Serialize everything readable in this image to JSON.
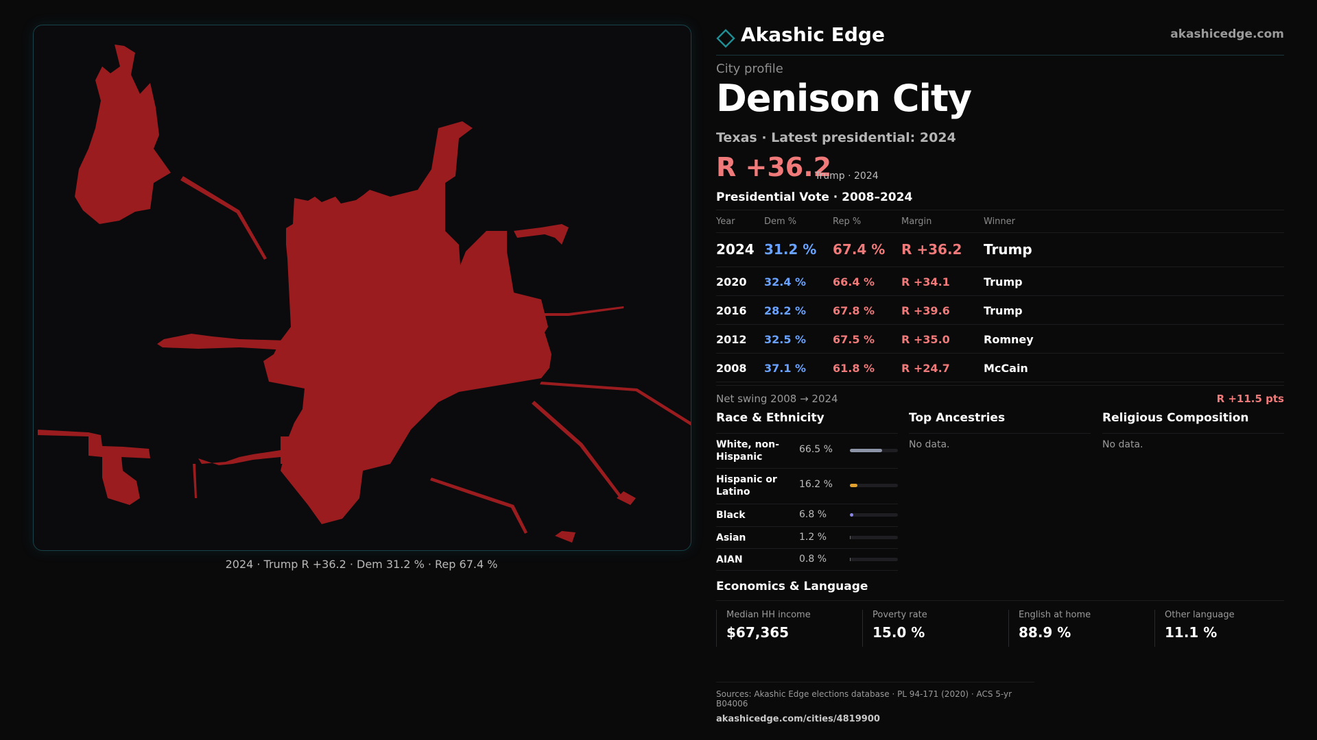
{
  "map": {
    "caption": "2024 · Trump R +36.2 · Dem 31.2 % · Rep 67.4 %",
    "fill_color": "#9b1c1f"
  },
  "brand": {
    "name": "Akashic Edge",
    "url": "akashicedge.com",
    "logo_icon": "diamond-icon",
    "accent_color": "#1f8f95"
  },
  "profile": {
    "kicker": "City profile",
    "city": "Denison City",
    "subtitle": "Texas · Latest presidential: 2024",
    "margin_headline": "R +36.2",
    "margin_note": "Trump · 2024"
  },
  "vote": {
    "title": "Presidential Vote · 2008–2024",
    "headers": {
      "year": "Year",
      "dem": "Dem %",
      "rep": "Rep %",
      "margin": "Margin",
      "winner": "Winner"
    },
    "rows": [
      {
        "year": "2024",
        "dem": "31.2 %",
        "rep": "67.4 %",
        "margin": "R +36.2",
        "winner": "Trump"
      },
      {
        "year": "2020",
        "dem": "32.4 %",
        "rep": "66.4 %",
        "margin": "R +34.1",
        "winner": "Trump"
      },
      {
        "year": "2016",
        "dem": "28.2 %",
        "rep": "67.8 %",
        "margin": "R +39.6",
        "winner": "Trump"
      },
      {
        "year": "2012",
        "dem": "32.5 %",
        "rep": "67.5 %",
        "margin": "R +35.0",
        "winner": "Romney"
      },
      {
        "year": "2008",
        "dem": "37.1 %",
        "rep": "61.8 %",
        "margin": "R +24.7",
        "winner": "McCain"
      }
    ],
    "net_swing_label": "Net swing 2008 → 2024",
    "net_swing_value": "R +11.5 pts",
    "dem_color": "#6aa3ff",
    "rep_color": "#f07a7a"
  },
  "race": {
    "title": "Race & Ethnicity",
    "rows": [
      {
        "label": "White, non-Hispanic",
        "value": "66.5 %",
        "share": 0.665,
        "color": "#8c94a8"
      },
      {
        "label": "Hispanic or Latino",
        "value": "16.2 %",
        "share": 0.162,
        "color": "#e0a12e"
      },
      {
        "label": "Black",
        "value": "6.8 %",
        "share": 0.068,
        "color": "#8a86e8"
      },
      {
        "label": "Asian",
        "value": "1.2 %",
        "share": 0.012,
        "color": "#6b6b6b"
      },
      {
        "label": "AIAN",
        "value": "0.8 %",
        "share": 0.008,
        "color": "#c0502e"
      }
    ]
  },
  "ancestries": {
    "title": "Top Ancestries",
    "empty": "No data."
  },
  "religion": {
    "title": "Religious Composition",
    "empty": "No data."
  },
  "economics": {
    "title": "Economics & Language",
    "cells": [
      {
        "label": "Median HH income",
        "value": "$67,365"
      },
      {
        "label": "Poverty rate",
        "value": "15.0 %"
      },
      {
        "label": "English at home",
        "value": "88.9 %"
      },
      {
        "label": "Other language",
        "value": "11.1 %"
      }
    ]
  },
  "footer": {
    "sources": "Sources: Akashic Edge elections database · PL 94-171 (2020) · ACS 5-yr B04006",
    "url": "akashicedge.com/cities/4819900"
  }
}
